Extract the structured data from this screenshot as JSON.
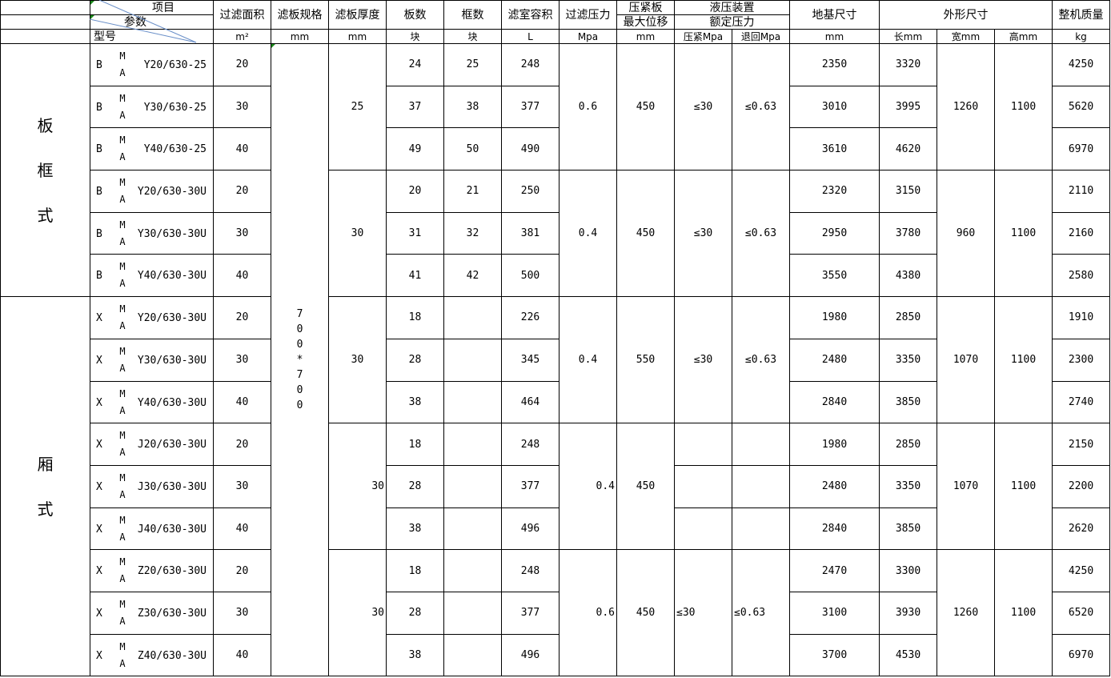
{
  "header": {
    "item": "项目",
    "param": "参数",
    "model": "型号",
    "columns": {
      "area": {
        "title": "过滤面积",
        "unit": "m²"
      },
      "spec": {
        "title": "滤板规格",
        "unit": "mm"
      },
      "thickness": {
        "title": "滤板厚度",
        "unit": "mm"
      },
      "plates": {
        "title": "板数",
        "unit": "块"
      },
      "frames": {
        "title": "框数",
        "unit": "块"
      },
      "volume": {
        "title": "滤室容积",
        "unit": "L"
      },
      "pressure": {
        "title": "过滤压力",
        "unit": "Mpa"
      },
      "displacement": {
        "title1": "压紧板",
        "title2": "最大位移",
        "unit": "mm"
      },
      "hydraulic": {
        "title1": "液压装置",
        "title2": "额定压力",
        "press_unit": "压紧Mpa",
        "retract_unit": "退回Mpa"
      },
      "foundation": {
        "title": "地基尺寸",
        "unit": "mm"
      },
      "outline": {
        "title": "外形尺寸",
        "length_unit": "长mm",
        "width_unit": "宽mm",
        "height_unit": "高mm"
      },
      "weight": {
        "title": "整机质量",
        "unit": "kg"
      }
    }
  },
  "categories": [
    {
      "label": [
        "板",
        "框",
        "式"
      ]
    },
    {
      "label": [
        "厢",
        "式"
      ]
    }
  ],
  "spec_value": [
    "7",
    "0",
    "0",
    "*",
    "7",
    "0",
    "0"
  ],
  "groups": [
    {
      "thickness": "25",
      "pressure": "0.6",
      "displacement": "450",
      "press": "≤30",
      "retract": "≤0.63",
      "width": "1260",
      "height": "1100"
    },
    {
      "thickness": "30",
      "pressure": "0.4",
      "displacement": "450",
      "press": "≤30",
      "retract": "≤0.63",
      "width": "960",
      "height": "1100"
    },
    {
      "thickness": "30",
      "pressure": "0.4",
      "displacement": "550",
      "press": "≤30",
      "retract": "≤0.63",
      "width": "1070",
      "height": "1100"
    },
    {
      "thickness": "30",
      "pressure": "0.4",
      "displacement": "450",
      "press": null,
      "retract": null,
      "width": "1070",
      "height": "1100"
    },
    {
      "thickness": "30",
      "pressure": "0.6",
      "displacement": "450",
      "press": "≤30",
      "retract": "≤0.63",
      "width": "1260",
      "height": "1100"
    }
  ],
  "rows": [
    {
      "model": {
        "prefix": "B",
        "m": "M",
        "a": "A",
        "suffix": "Y20/630-25"
      },
      "area": "20",
      "plates": "24",
      "frames": "25",
      "volume": "248",
      "foundation": "2350",
      "length": "3320",
      "weight": "4250"
    },
    {
      "model": {
        "prefix": "B",
        "m": "M",
        "a": "A",
        "suffix": "Y30/630-25"
      },
      "area": "30",
      "plates": "37",
      "frames": "38",
      "volume": "377",
      "foundation": "3010",
      "length": "3995",
      "weight": "5620"
    },
    {
      "model": {
        "prefix": "B",
        "m": "M",
        "a": "A",
        "suffix": "Y40/630-25"
      },
      "area": "40",
      "plates": "49",
      "frames": "50",
      "volume": "490",
      "foundation": "3610",
      "length": "4620",
      "weight": "6970"
    },
    {
      "model": {
        "prefix": "B",
        "m": "M",
        "a": "A",
        "suffix": "Y20/630-30U"
      },
      "area": "20",
      "plates": "20",
      "frames": "21",
      "volume": "250",
      "foundation": "2320",
      "length": "3150",
      "weight": "2110"
    },
    {
      "model": {
        "prefix": "B",
        "m": "M",
        "a": "A",
        "suffix": "Y30/630-30U"
      },
      "area": "30",
      "plates": "31",
      "frames": "32",
      "volume": "381",
      "foundation": "2950",
      "length": "3780",
      "weight": "2160"
    },
    {
      "model": {
        "prefix": "B",
        "m": "M",
        "a": "A",
        "suffix": "Y40/630-30U"
      },
      "area": "40",
      "plates": "41",
      "frames": "42",
      "volume": "500",
      "foundation": "3550",
      "length": "4380",
      "weight": "2580"
    },
    {
      "model": {
        "prefix": "X",
        "m": "M",
        "a": "A",
        "suffix": "Y20/630-30U"
      },
      "area": "20",
      "plates": "18",
      "frames": "",
      "volume": "226",
      "foundation": "1980",
      "length": "2850",
      "weight": "1910"
    },
    {
      "model": {
        "prefix": "X",
        "m": "M",
        "a": "A",
        "suffix": "Y30/630-30U"
      },
      "area": "30",
      "plates": "28",
      "frames": "",
      "volume": "345",
      "foundation": "2480",
      "length": "3350",
      "weight": "2300"
    },
    {
      "model": {
        "prefix": "X",
        "m": "M",
        "a": "A",
        "suffix": "Y40/630-30U"
      },
      "area": "40",
      "plates": "38",
      "frames": "",
      "volume": "464",
      "foundation": "2840",
      "length": "3850",
      "weight": "2740"
    },
    {
      "model": {
        "prefix": "X",
        "m": "M",
        "a": "A",
        "suffix": "J20/630-30U"
      },
      "area": "20",
      "plates": "18",
      "frames": "",
      "volume": "248",
      "foundation": "1980",
      "length": "2850",
      "weight": "2150"
    },
    {
      "model": {
        "prefix": "X",
        "m": "M",
        "a": "A",
        "suffix": "J30/630-30U"
      },
      "area": "30",
      "plates": "28",
      "frames": "",
      "volume": "377",
      "foundation": "2480",
      "length": "3350",
      "weight": "2200"
    },
    {
      "model": {
        "prefix": "X",
        "m": "M",
        "a": "A",
        "suffix": "J40/630-30U"
      },
      "area": "40",
      "plates": "38",
      "frames": "",
      "volume": "496",
      "foundation": "2840",
      "length": "3850",
      "weight": "2620"
    },
    {
      "model": {
        "prefix": "X",
        "m": "M",
        "a": "A",
        "suffix": "Z20/630-30U"
      },
      "area": "20",
      "plates": "18",
      "frames": "",
      "volume": "248",
      "foundation": "2470",
      "length": "3300",
      "weight": "4250"
    },
    {
      "model": {
        "prefix": "X",
        "m": "M",
        "a": "A",
        "suffix": "Z30/630-30U"
      },
      "area": "30",
      "plates": "28",
      "frames": "",
      "volume": "377",
      "foundation": "3100",
      "length": "3930",
      "weight": "6520"
    },
    {
      "model": {
        "prefix": "X",
        "m": "M",
        "a": "A",
        "suffix": "Z40/630-30U"
      },
      "area": "40",
      "plates": "38",
      "frames": "",
      "volume": "496",
      "foundation": "3700",
      "length": "4530",
      "weight": "6970"
    }
  ]
}
